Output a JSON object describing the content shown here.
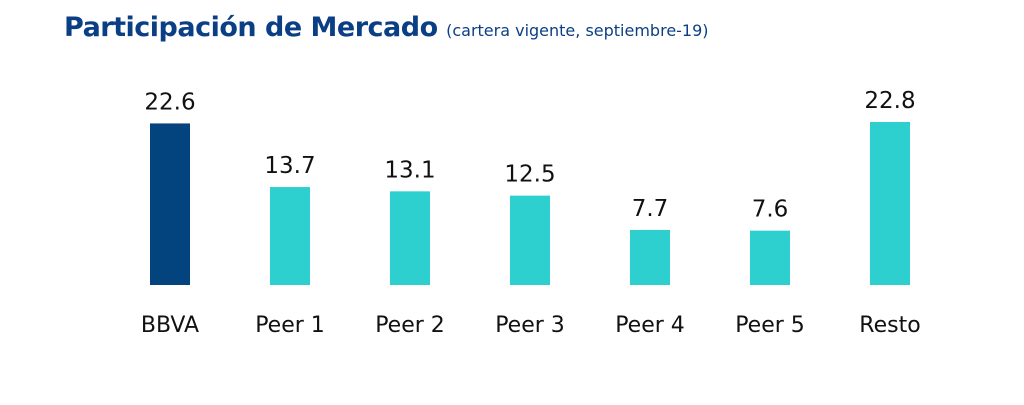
{
  "title": "Participación de Mercado",
  "subtitle": "(cartera vigente, septiembre-19)",
  "colors": {
    "highlight": "#03437e",
    "bar": "#2ecfcf",
    "title": "#0b3f85",
    "text": "#111111"
  },
  "chart_data": {
    "type": "bar",
    "title": "Participación de Mercado",
    "subtitle": "(cartera vigente, septiembre-19)",
    "categories": [
      "BBVA",
      "Peer 1",
      "Peer 2",
      "Peer 3",
      "Peer 4",
      "Peer 5",
      "Resto"
    ],
    "values": [
      22.6,
      13.7,
      13.1,
      12.5,
      7.7,
      7.6,
      22.8
    ],
    "value_labels": [
      "22.6",
      "13.7",
      "13.1",
      "12.5",
      "7.7",
      "7.6",
      "22.8"
    ],
    "highlight_index": 0,
    "xlabel": "",
    "ylabel": "",
    "ylim": [
      0,
      22.8
    ],
    "grid": false,
    "legend": "none"
  }
}
